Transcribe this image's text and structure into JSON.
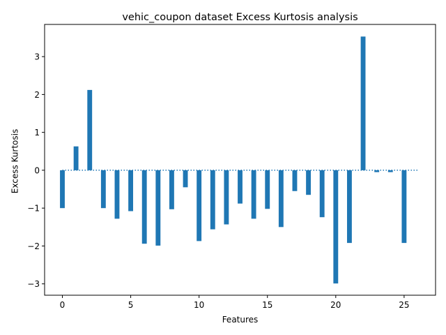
{
  "chart_data": {
    "type": "bar",
    "title": "vehic_coupon dataset Excess Kurtosis analysis",
    "xlabel": "Features",
    "ylabel": "Excess Kurtosis",
    "x": [
      0,
      1,
      2,
      3,
      4,
      5,
      6,
      7,
      8,
      9,
      10,
      11,
      12,
      13,
      14,
      15,
      16,
      17,
      18,
      19,
      20,
      21,
      22,
      23,
      24,
      25
    ],
    "values": [
      -1.0,
      0.63,
      2.12,
      -1.0,
      -1.28,
      -1.08,
      -1.94,
      -1.99,
      -1.03,
      -0.45,
      -1.87,
      -1.56,
      -1.43,
      -0.88,
      -1.28,
      -1.02,
      -1.5,
      -0.55,
      -0.65,
      -1.24,
      -2.99,
      -1.92,
      3.53,
      -0.05,
      -0.05,
      -1.92
    ],
    "xlim": [
      -1.3,
      27.3
    ],
    "ylim": [
      -3.3,
      3.85
    ],
    "xticks": [
      0,
      5,
      10,
      15,
      20,
      25
    ],
    "yticks": [
      -3,
      -2,
      -1,
      0,
      1,
      2,
      3
    ],
    "reference_line": {
      "y": 0,
      "x_range": [
        0,
        26
      ],
      "style": "dotted"
    },
    "bar_color": "#1f77b4",
    "grid": false,
    "legend": "none"
  }
}
